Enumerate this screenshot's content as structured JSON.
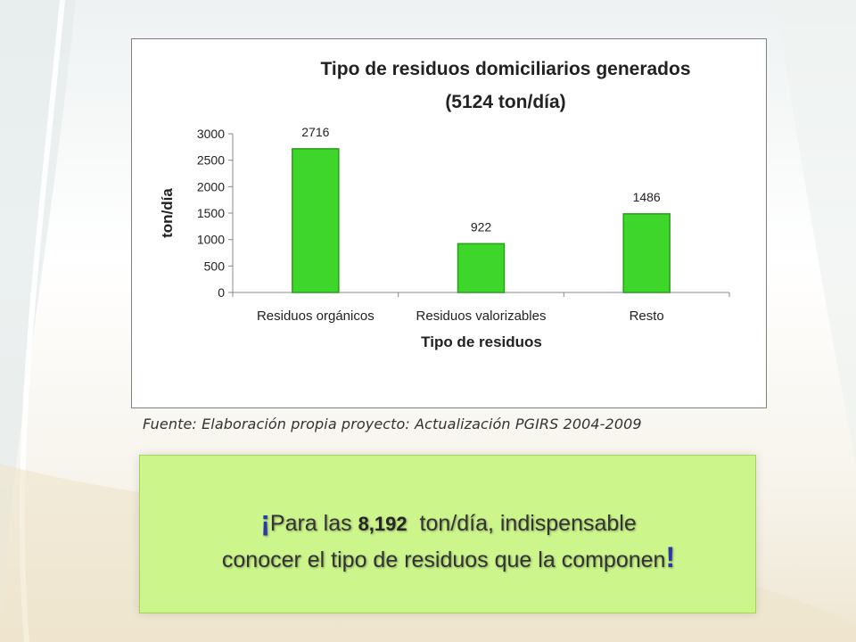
{
  "chart_data": {
    "type": "bar",
    "title": "Tipo de residuos domiciliarios generados",
    "subtitle": "(5124 ton/día)",
    "categories": [
      "Residuos orgánicos",
      "Residuos valorizables",
      "Resto"
    ],
    "values": [
      2716,
      922,
      1486
    ],
    "data_labels": [
      "2716",
      "922",
      "1486"
    ],
    "xlabel": "Tipo de residuos",
    "ylabel": "ton/día",
    "ylim": [
      0,
      3000
    ],
    "yticks": [
      "0",
      "500",
      "1000",
      "1500",
      "2000",
      "2500",
      "3000"
    ],
    "bar_color": "#3ed62a",
    "bar_edge_color": "#2a9e1e",
    "grid": false,
    "legend": "none"
  },
  "source_note": "Fuente: Elaboración propia proyecto: Actualización PGIRS 2004-2009",
  "callout": {
    "open_mark": "¡",
    "line1_before": "Para las ",
    "highlight_number": "8,192",
    "line1_after": "  ton/día, indispensable",
    "line2": "conocer el tipo de residuos que la componen",
    "close_mark": "!",
    "background_color": "#ccf58c"
  }
}
